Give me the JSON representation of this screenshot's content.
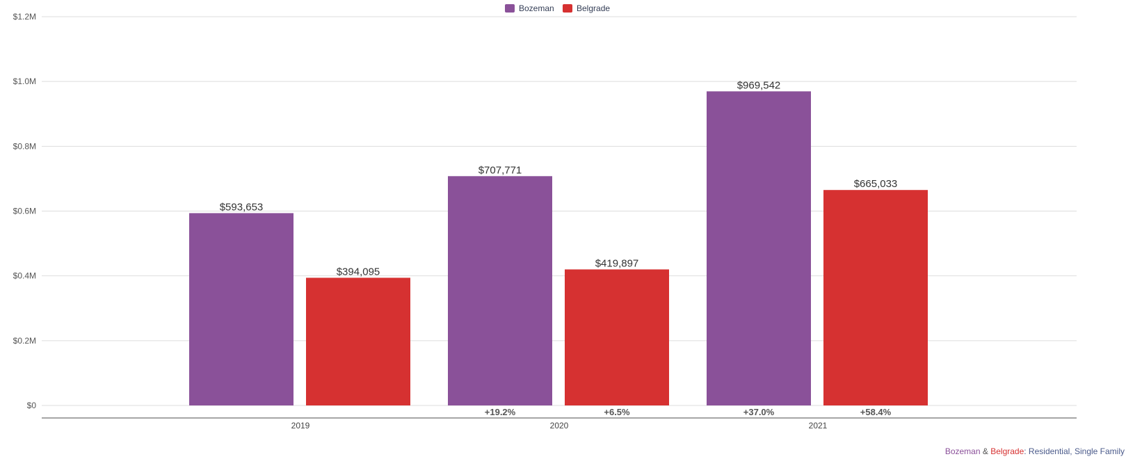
{
  "chart_data": {
    "type": "bar",
    "title": "",
    "xlabel": "",
    "ylabel": "",
    "categories": [
      "2019",
      "2020",
      "2021"
    ],
    "series": [
      {
        "name": "Bozeman",
        "color": "#8a5199",
        "values": [
          593653,
          707771,
          969542
        ],
        "labels": [
          "$593,653",
          "$707,771",
          "$969,542"
        ],
        "changes": [
          "",
          "+19.2%",
          "+37.0%"
        ]
      },
      {
        "name": "Belgrade",
        "color": "#d63131",
        "values": [
          394095,
          419897,
          665033
        ],
        "labels": [
          "$394,095",
          "$419,897",
          "$665,033"
        ],
        "changes": [
          "",
          "+6.5%",
          "+58.4%"
        ]
      }
    ],
    "ylim": [
      0,
      1200000
    ],
    "yticks": [
      0,
      200000,
      400000,
      600000,
      800000,
      1000000,
      1200000
    ],
    "ytick_labels": [
      "$0",
      "$0.2M",
      "$0.4M",
      "$0.6M",
      "$0.8M",
      "$1.0M",
      "$1.2M"
    ],
    "grid": true,
    "legend_position": "top-center"
  },
  "caption": {
    "city1": "Bozeman",
    "amp": "&",
    "city2": "Belgrade",
    "rest": ": Residential, Single Family"
  }
}
